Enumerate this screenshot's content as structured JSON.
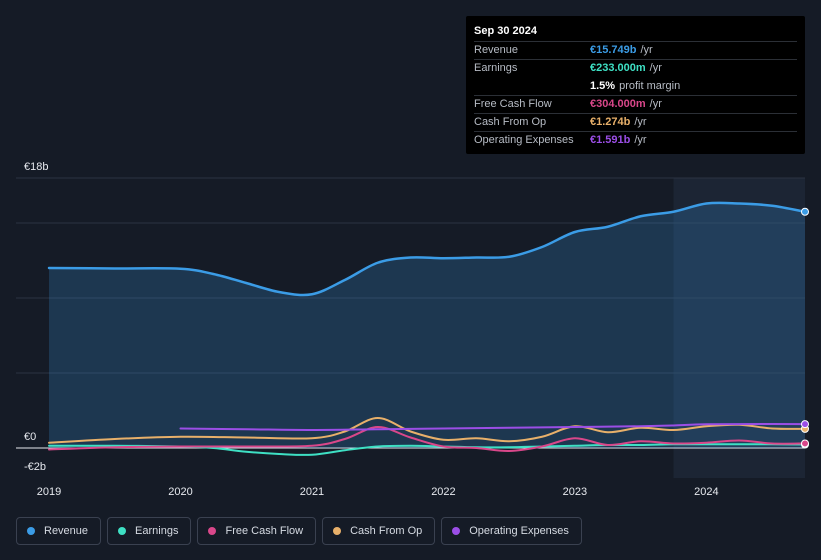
{
  "chart_data": {
    "type": "area",
    "title": "",
    "x_axis": {
      "ticks": [
        "2019",
        "2020",
        "2021",
        "2022",
        "2023",
        "2024"
      ],
      "range": [
        2019,
        2024.75
      ]
    },
    "y_axis": {
      "range": [
        -2,
        18
      ],
      "tick_labels": {
        "top": "€18b",
        "zero": "€0",
        "bottom": "-€2b"
      }
    },
    "highlight_period_start": 2023.75,
    "series": [
      {
        "name": "Revenue",
        "color": "#3b9ce6",
        "fill": true,
        "points": [
          [
            2019,
            12
          ],
          [
            2019.5,
            11.97
          ],
          [
            2020,
            11.95
          ],
          [
            2020.25,
            11.6
          ],
          [
            2020.5,
            11
          ],
          [
            2020.75,
            10.4
          ],
          [
            2021,
            10.25
          ],
          [
            2021.25,
            11.2
          ],
          [
            2021.5,
            12.35
          ],
          [
            2021.75,
            12.7
          ],
          [
            2022,
            12.65
          ],
          [
            2022.25,
            12.7
          ],
          [
            2022.5,
            12.75
          ],
          [
            2022.75,
            13.4
          ],
          [
            2023,
            14.4
          ],
          [
            2023.25,
            14.75
          ],
          [
            2023.5,
            15.45
          ],
          [
            2023.75,
            15.75
          ],
          [
            2024,
            16.3
          ],
          [
            2024.25,
            16.3
          ],
          [
            2024.5,
            16.15
          ],
          [
            2024.75,
            15.75
          ]
        ]
      },
      {
        "name": "Earnings",
        "color": "#3ee0c4",
        "points": [
          [
            2019,
            0.15
          ],
          [
            2019.5,
            0.15
          ],
          [
            2020,
            0.1
          ],
          [
            2020.25,
            0
          ],
          [
            2020.5,
            -0.25
          ],
          [
            2020.75,
            -0.4
          ],
          [
            2021,
            -0.45
          ],
          [
            2021.25,
            -0.15
          ],
          [
            2021.5,
            0.1
          ],
          [
            2021.75,
            0.15
          ],
          [
            2022,
            0.1
          ],
          [
            2022.25,
            0.05
          ],
          [
            2022.5,
            0.05
          ],
          [
            2022.75,
            0.1
          ],
          [
            2023,
            0.15
          ],
          [
            2023.25,
            0.2
          ],
          [
            2023.5,
            0.2
          ],
          [
            2023.75,
            0.25
          ],
          [
            2024,
            0.25
          ],
          [
            2024.25,
            0.25
          ],
          [
            2024.5,
            0.25
          ],
          [
            2024.75,
            0.233
          ]
        ]
      },
      {
        "name": "Free Cash Flow",
        "color": "#d9478a",
        "points": [
          [
            2019,
            -0.1
          ],
          [
            2019.5,
            0.05
          ],
          [
            2020,
            0.1
          ],
          [
            2020.5,
            0.1
          ],
          [
            2021,
            0.15
          ],
          [
            2021.25,
            0.6
          ],
          [
            2021.5,
            1.4
          ],
          [
            2021.75,
            0.7
          ],
          [
            2022,
            0.1
          ],
          [
            2022.25,
            0
          ],
          [
            2022.5,
            -0.2
          ],
          [
            2022.75,
            0.1
          ],
          [
            2023,
            0.65
          ],
          [
            2023.25,
            0.2
          ],
          [
            2023.5,
            0.45
          ],
          [
            2023.75,
            0.3
          ],
          [
            2024,
            0.35
          ],
          [
            2024.25,
            0.5
          ],
          [
            2024.5,
            0.3
          ],
          [
            2024.75,
            0.304
          ]
        ]
      },
      {
        "name": "Cash From Op",
        "color": "#e8b06a",
        "points": [
          [
            2019,
            0.35
          ],
          [
            2019.5,
            0.6
          ],
          [
            2020,
            0.75
          ],
          [
            2020.5,
            0.7
          ],
          [
            2021,
            0.65
          ],
          [
            2021.25,
            1.1
          ],
          [
            2021.5,
            2
          ],
          [
            2021.75,
            1.1
          ],
          [
            2022,
            0.55
          ],
          [
            2022.25,
            0.65
          ],
          [
            2022.5,
            0.45
          ],
          [
            2022.75,
            0.75
          ],
          [
            2023,
            1.45
          ],
          [
            2023.25,
            1.05
          ],
          [
            2023.5,
            1.35
          ],
          [
            2023.75,
            1.2
          ],
          [
            2024,
            1.45
          ],
          [
            2024.25,
            1.55
          ],
          [
            2024.5,
            1.3
          ],
          [
            2024.75,
            1.274
          ]
        ]
      },
      {
        "name": "Operating Expenses",
        "color": "#9b4ee6",
        "points": [
          [
            2020,
            1.3
          ],
          [
            2020.5,
            1.25
          ],
          [
            2021,
            1.2
          ],
          [
            2021.5,
            1.25
          ],
          [
            2022,
            1.3
          ],
          [
            2022.5,
            1.35
          ],
          [
            2023,
            1.4
          ],
          [
            2023.5,
            1.45
          ],
          [
            2023.75,
            1.5
          ],
          [
            2024,
            1.58
          ],
          [
            2024.5,
            1.6
          ],
          [
            2024.75,
            1.591
          ]
        ]
      }
    ]
  },
  "tooltip": {
    "date": "Sep 30 2024",
    "rows": [
      {
        "label": "Revenue",
        "value": "€15.749b",
        "unit": "/yr",
        "color": "#3b9ce6"
      },
      {
        "label": "Earnings",
        "value": "€233.000m",
        "unit": "/yr",
        "color": "#3ee0c4"
      },
      {
        "label": "",
        "value": "1.5%",
        "unit": "profit margin",
        "color": "#ffffff"
      },
      {
        "label": "Free Cash Flow",
        "value": "€304.000m",
        "unit": "/yr",
        "color": "#d9478a"
      },
      {
        "label": "Cash From Op",
        "value": "€1.274b",
        "unit": "/yr",
        "color": "#e8b06a"
      },
      {
        "label": "Operating Expenses",
        "value": "€1.591b",
        "unit": "/yr",
        "color": "#9b4ee6"
      }
    ]
  },
  "legend": [
    {
      "label": "Revenue",
      "color": "#3b9ce6"
    },
    {
      "label": "Earnings",
      "color": "#3ee0c4"
    },
    {
      "label": "Free Cash Flow",
      "color": "#d9478a"
    },
    {
      "label": "Cash From Op",
      "color": "#e8b06a"
    },
    {
      "label": "Operating Expenses",
      "color": "#9b4ee6"
    }
  ]
}
